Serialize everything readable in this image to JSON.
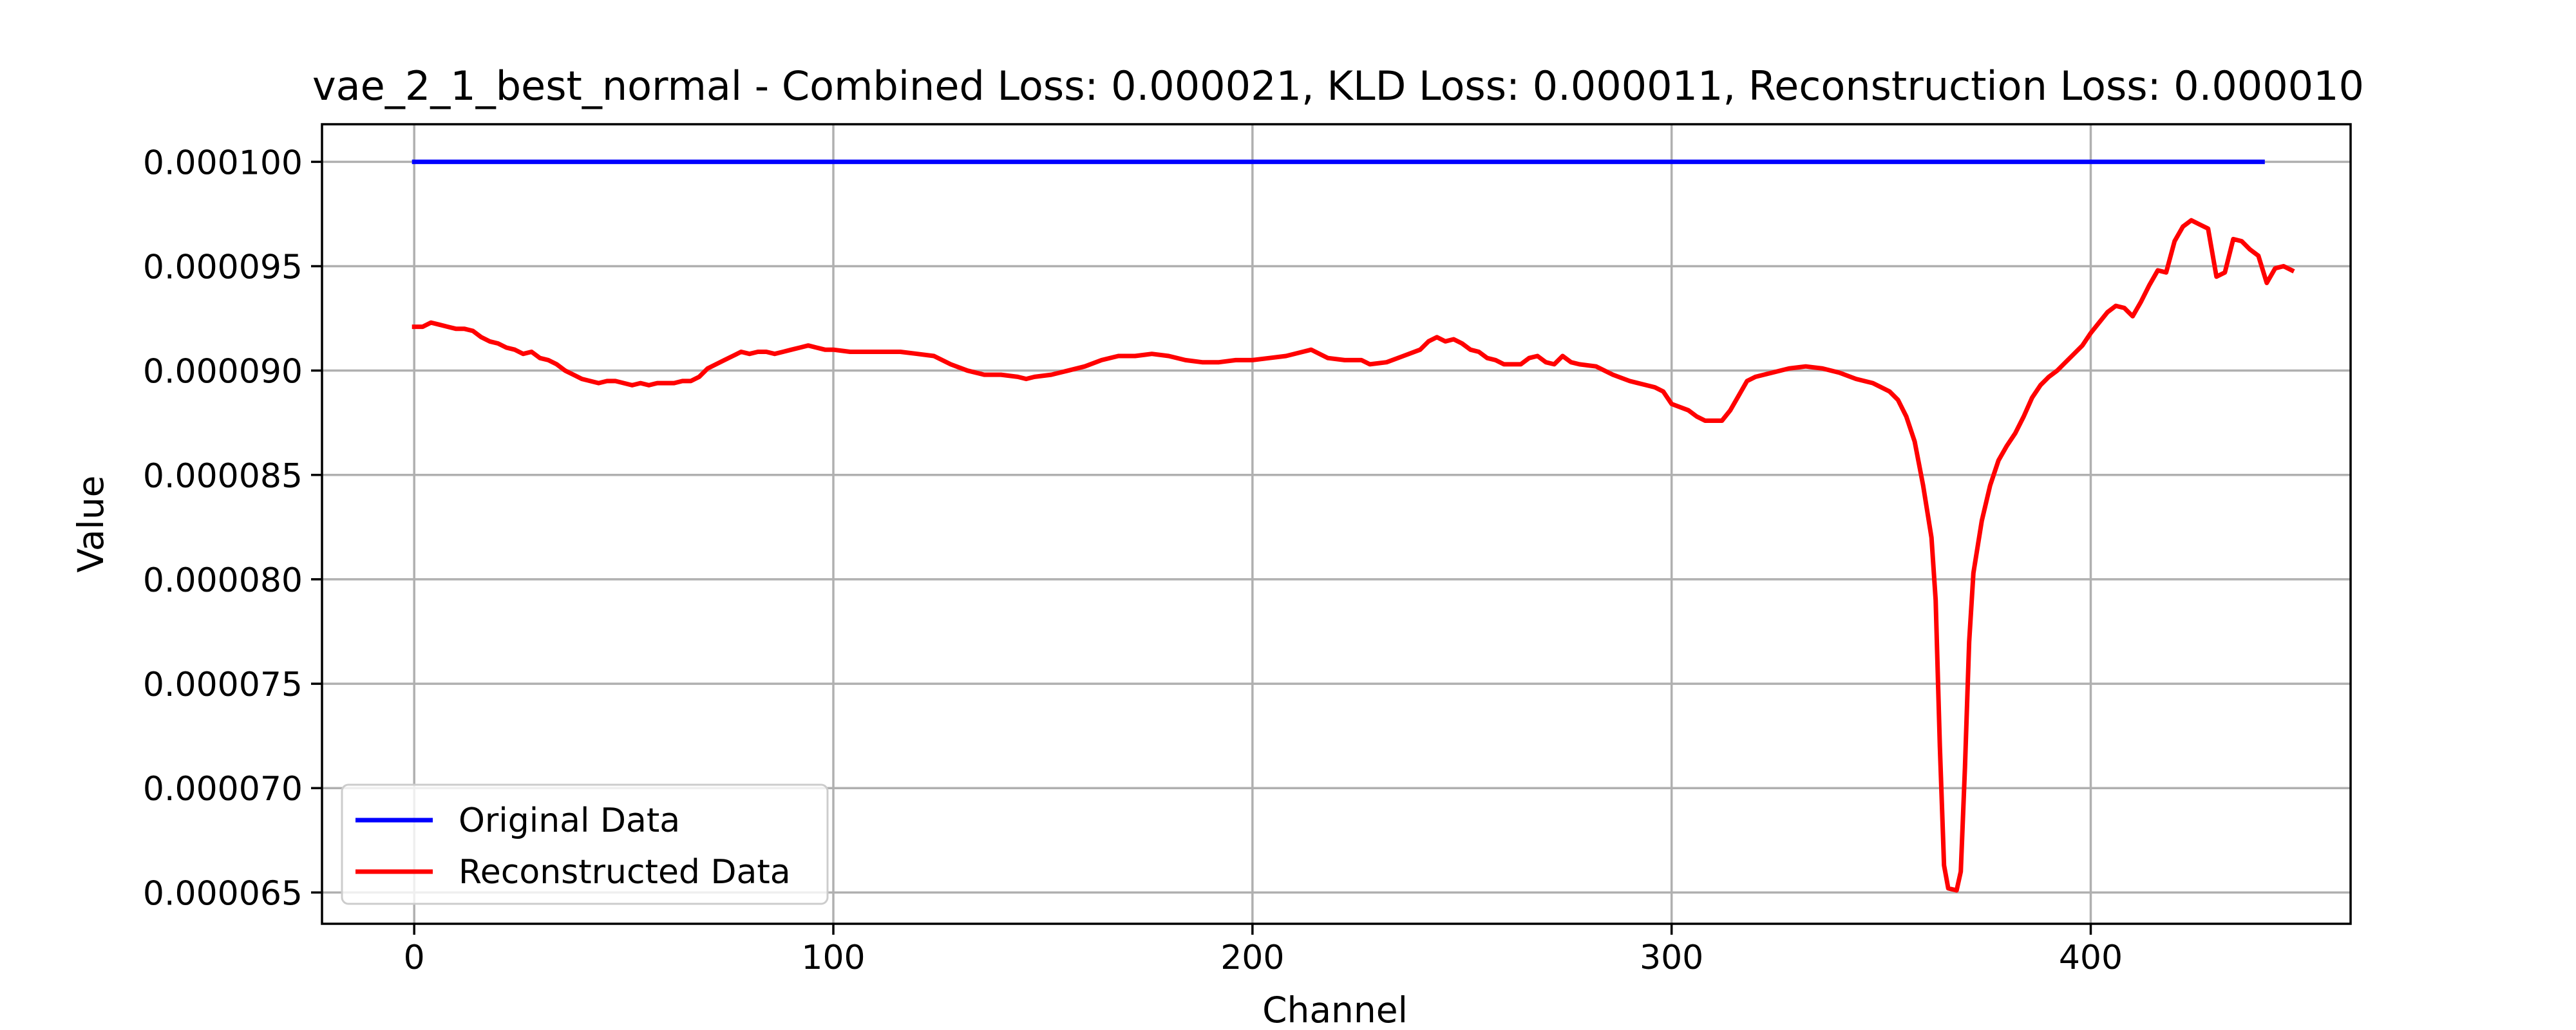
{
  "chart_data": {
    "type": "line",
    "title": "vae_2_1_best_normal - Combined Loss: 0.000021, KLD Loss: 0.000011, Reconstruction Loss: 0.000010",
    "xlabel": "Channel",
    "ylabel": "Value",
    "xlim": [
      -22,
      462
    ],
    "ylim": [
      6.35e-05,
      0.0001018
    ],
    "x_ticks": [
      0,
      100,
      200,
      300,
      400
    ],
    "x_tick_labels": [
      "0",
      "100",
      "200",
      "300",
      "400"
    ],
    "y_ticks": [
      6.5e-05,
      7e-05,
      7.5e-05,
      8e-05,
      8.5e-05,
      9e-05,
      9.5e-05,
      0.0001
    ],
    "y_tick_labels": [
      "0.000065",
      "0.000070",
      "0.000075",
      "0.000080",
      "0.000085",
      "0.000090",
      "0.000095",
      "0.000100"
    ],
    "grid": true,
    "legend_position": "lower-left",
    "series": [
      {
        "name": "Original Data",
        "color": "#0000ff",
        "points": [
          [
            0,
            0.0001
          ],
          [
            441,
            0.0001
          ]
        ]
      },
      {
        "name": "Reconstructed Data",
        "color": "#ff0000",
        "points": [
          [
            0,
            9.21e-05
          ],
          [
            2,
            9.21e-05
          ],
          [
            4,
            9.23e-05
          ],
          [
            6,
            9.22e-05
          ],
          [
            8,
            9.21e-05
          ],
          [
            10,
            9.2e-05
          ],
          [
            12,
            9.2e-05
          ],
          [
            14,
            9.19e-05
          ],
          [
            16,
            9.16e-05
          ],
          [
            18,
            9.14e-05
          ],
          [
            20,
            9.13e-05
          ],
          [
            22,
            9.11e-05
          ],
          [
            24,
            9.1e-05
          ],
          [
            26,
            9.08e-05
          ],
          [
            28,
            9.09e-05
          ],
          [
            30,
            9.06e-05
          ],
          [
            32,
            9.05e-05
          ],
          [
            34,
            9.03e-05
          ],
          [
            36,
            9e-05
          ],
          [
            38,
            8.98e-05
          ],
          [
            40,
            8.96e-05
          ],
          [
            42,
            8.95e-05
          ],
          [
            44,
            8.94e-05
          ],
          [
            46,
            8.95e-05
          ],
          [
            48,
            8.95e-05
          ],
          [
            50,
            8.94e-05
          ],
          [
            52,
            8.93e-05
          ],
          [
            54,
            8.94e-05
          ],
          [
            56,
            8.93e-05
          ],
          [
            58,
            8.94e-05
          ],
          [
            60,
            8.94e-05
          ],
          [
            62,
            8.94e-05
          ],
          [
            64,
            8.95e-05
          ],
          [
            66,
            8.95e-05
          ],
          [
            68,
            8.97e-05
          ],
          [
            70,
            9.01e-05
          ],
          [
            72,
            9.03e-05
          ],
          [
            74,
            9.05e-05
          ],
          [
            76,
            9.07e-05
          ],
          [
            78,
            9.09e-05
          ],
          [
            80,
            9.08e-05
          ],
          [
            82,
            9.09e-05
          ],
          [
            84,
            9.09e-05
          ],
          [
            86,
            9.08e-05
          ],
          [
            88,
            9.09e-05
          ],
          [
            90,
            9.1e-05
          ],
          [
            92,
            9.11e-05
          ],
          [
            94,
            9.12e-05
          ],
          [
            96,
            9.11e-05
          ],
          [
            98,
            9.1e-05
          ],
          [
            100,
            9.1e-05
          ],
          [
            104,
            9.09e-05
          ],
          [
            108,
            9.09e-05
          ],
          [
            112,
            9.09e-05
          ],
          [
            116,
            9.09e-05
          ],
          [
            120,
            9.08e-05
          ],
          [
            124,
            9.07e-05
          ],
          [
            128,
            9.03e-05
          ],
          [
            132,
            9e-05
          ],
          [
            136,
            8.98e-05
          ],
          [
            140,
            8.98e-05
          ],
          [
            144,
            8.97e-05
          ],
          [
            146,
            8.96e-05
          ],
          [
            148,
            8.97e-05
          ],
          [
            152,
            8.98e-05
          ],
          [
            156,
            9e-05
          ],
          [
            160,
            9.02e-05
          ],
          [
            164,
            9.05e-05
          ],
          [
            168,
            9.07e-05
          ],
          [
            172,
            9.07e-05
          ],
          [
            176,
            9.08e-05
          ],
          [
            180,
            9.07e-05
          ],
          [
            184,
            9.05e-05
          ],
          [
            188,
            9.04e-05
          ],
          [
            192,
            9.04e-05
          ],
          [
            196,
            9.05e-05
          ],
          [
            200,
            9.05e-05
          ],
          [
            204,
            9.06e-05
          ],
          [
            208,
            9.07e-05
          ],
          [
            212,
            9.09e-05
          ],
          [
            214,
            9.1e-05
          ],
          [
            216,
            9.08e-05
          ],
          [
            218,
            9.06e-05
          ],
          [
            222,
            9.05e-05
          ],
          [
            226,
            9.05e-05
          ],
          [
            228,
            9.03e-05
          ],
          [
            232,
            9.04e-05
          ],
          [
            236,
            9.07e-05
          ],
          [
            240,
            9.1e-05
          ],
          [
            242,
            9.14e-05
          ],
          [
            244,
            9.16e-05
          ],
          [
            246,
            9.14e-05
          ],
          [
            248,
            9.15e-05
          ],
          [
            250,
            9.13e-05
          ],
          [
            252,
            9.1e-05
          ],
          [
            254,
            9.09e-05
          ],
          [
            256,
            9.06e-05
          ],
          [
            258,
            9.05e-05
          ],
          [
            260,
            9.03e-05
          ],
          [
            264,
            9.03e-05
          ],
          [
            266,
            9.06e-05
          ],
          [
            268,
            9.07e-05
          ],
          [
            270,
            9.04e-05
          ],
          [
            272,
            9.03e-05
          ],
          [
            274,
            9.07e-05
          ],
          [
            276,
            9.04e-05
          ],
          [
            278,
            9.03e-05
          ],
          [
            282,
            9.02e-05
          ],
          [
            286,
            8.98e-05
          ],
          [
            290,
            8.95e-05
          ],
          [
            294,
            8.93e-05
          ],
          [
            296,
            8.92e-05
          ],
          [
            298,
            8.9e-05
          ],
          [
            300,
            8.84e-05
          ],
          [
            304,
            8.81e-05
          ],
          [
            306,
            8.78e-05
          ],
          [
            308,
            8.76e-05
          ],
          [
            312,
            8.76e-05
          ],
          [
            314,
            8.81e-05
          ],
          [
            316,
            8.88e-05
          ],
          [
            318,
            8.95e-05
          ],
          [
            320,
            8.97e-05
          ],
          [
            324,
            8.99e-05
          ],
          [
            328,
            9.01e-05
          ],
          [
            332,
            9.02e-05
          ],
          [
            336,
            9.01e-05
          ],
          [
            340,
            8.99e-05
          ],
          [
            344,
            8.96e-05
          ],
          [
            348,
            8.94e-05
          ],
          [
            352,
            8.9e-05
          ],
          [
            354,
            8.86e-05
          ],
          [
            356,
            8.78e-05
          ],
          [
            358,
            8.66e-05
          ],
          [
            360,
            8.45e-05
          ],
          [
            362,
            8.2e-05
          ],
          [
            363,
            7.9e-05
          ],
          [
            364,
            7.2e-05
          ],
          [
            365,
            6.63e-05
          ],
          [
            366,
            6.52e-05
          ],
          [
            368,
            6.51e-05
          ],
          [
            369,
            6.6e-05
          ],
          [
            370,
            7.1e-05
          ],
          [
            371,
            7.7e-05
          ],
          [
            372,
            8.03e-05
          ],
          [
            374,
            8.28e-05
          ],
          [
            376,
            8.45e-05
          ],
          [
            378,
            8.57e-05
          ],
          [
            380,
            8.64e-05
          ],
          [
            382,
            8.7e-05
          ],
          [
            384,
            8.78e-05
          ],
          [
            386,
            8.87e-05
          ],
          [
            388,
            8.93e-05
          ],
          [
            390,
            8.97e-05
          ],
          [
            392,
            9e-05
          ],
          [
            394,
            9.04e-05
          ],
          [
            396,
            9.08e-05
          ],
          [
            398,
            9.12e-05
          ],
          [
            400,
            9.18e-05
          ],
          [
            402,
            9.23e-05
          ],
          [
            404,
            9.28e-05
          ],
          [
            406,
            9.31e-05
          ],
          [
            408,
            9.3e-05
          ],
          [
            410,
            9.26e-05
          ],
          [
            412,
            9.33e-05
          ],
          [
            414,
            9.41e-05
          ],
          [
            416,
            9.48e-05
          ],
          [
            418,
            9.47e-05
          ],
          [
            420,
            9.62e-05
          ],
          [
            422,
            9.69e-05
          ],
          [
            424,
            9.72e-05
          ],
          [
            426,
            9.7e-05
          ],
          [
            428,
            9.68e-05
          ],
          [
            430,
            9.45e-05
          ],
          [
            432,
            9.47e-05
          ],
          [
            434,
            9.63e-05
          ],
          [
            436,
            9.62e-05
          ],
          [
            438,
            9.58e-05
          ],
          [
            440,
            9.55e-05
          ],
          [
            442,
            9.42e-05
          ],
          [
            444,
            9.49e-05
          ],
          [
            446,
            9.5e-05
          ],
          [
            448,
            9.48e-05
          ]
        ]
      }
    ]
  }
}
